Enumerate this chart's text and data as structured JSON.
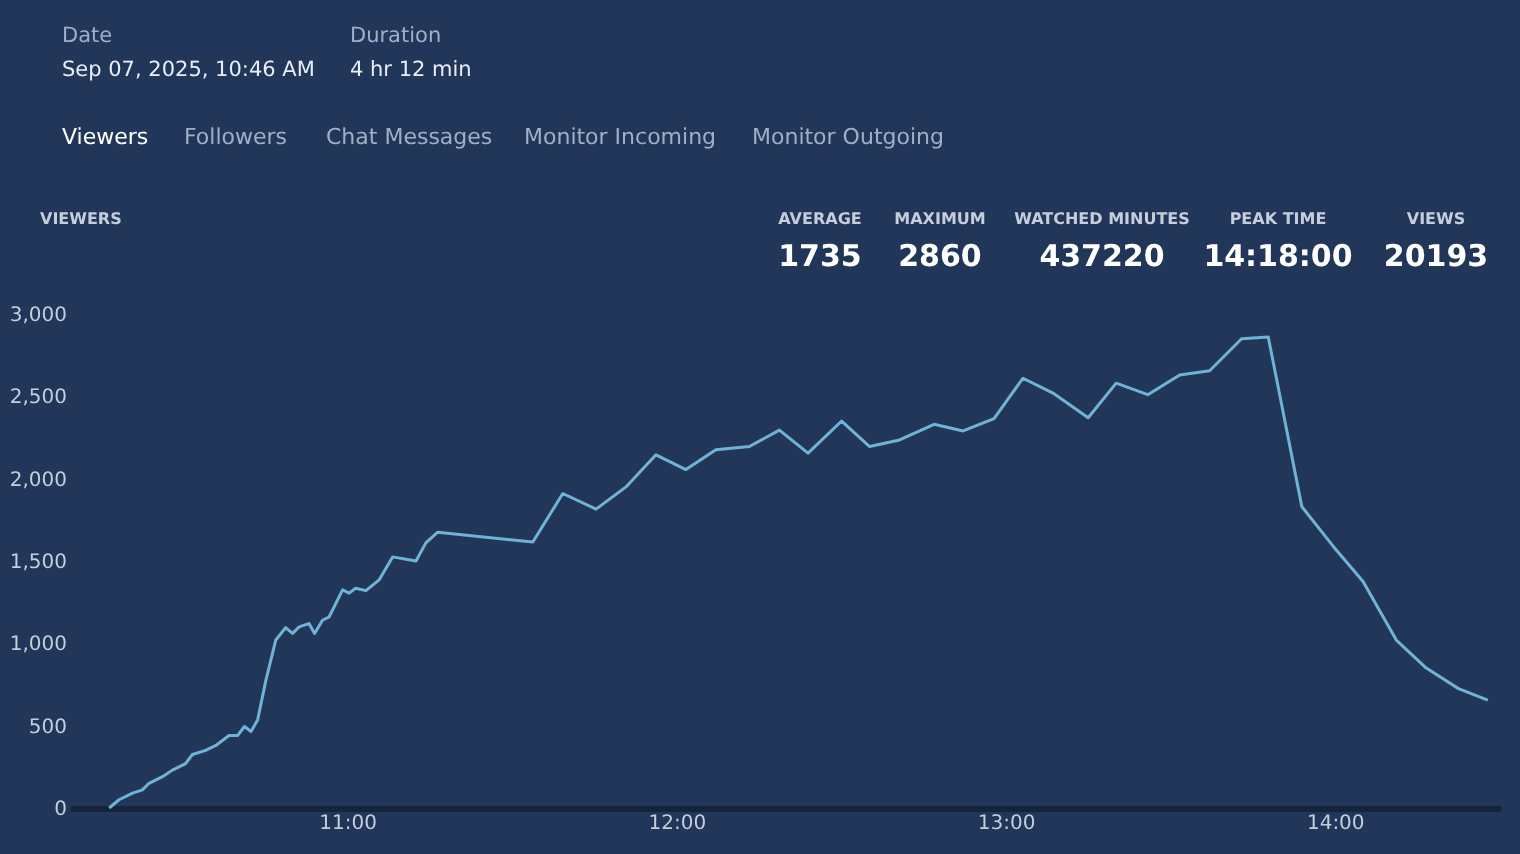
{
  "chart_data": {
    "type": "line",
    "title": "VIEWERS",
    "x": [
      10.277,
      10.307,
      10.348,
      10.378,
      10.398,
      10.439,
      10.469,
      10.509,
      10.53,
      10.57,
      10.601,
      10.641,
      10.667,
      10.688,
      10.708,
      10.728,
      10.753,
      10.783,
      10.813,
      10.834,
      10.854,
      10.884,
      10.901,
      10.925,
      10.945,
      10.986,
      11.006,
      11.026,
      11.057,
      11.097,
      11.138,
      11.209,
      11.239,
      11.275,
      11.564,
      11.655,
      11.756,
      11.847,
      11.938,
      12.029,
      12.12,
      12.222,
      12.313,
      12.4,
      12.502,
      12.587,
      12.678,
      12.783,
      12.871,
      12.965,
      13.053,
      13.144,
      13.251,
      13.336,
      13.432,
      13.529,
      13.62,
      13.717,
      13.798,
      13.9,
      13.995,
      14.086,
      14.187,
      14.278,
      14.376,
      14.465
    ],
    "series": [
      {
        "color": "#6fb3d6",
        "values": [
          0,
          50,
          90,
          110,
          150,
          190,
          230,
          270,
          325,
          350,
          380,
          440,
          440,
          495,
          465,
          535,
          775,
          1020,
          1095,
          1060,
          1100,
          1120,
          1060,
          1140,
          1160,
          1325,
          1305,
          1335,
          1320,
          1385,
          1525,
          1500,
          1610,
          1675,
          1615,
          1910,
          1815,
          1950,
          2145,
          2055,
          2175,
          2195,
          2295,
          2155,
          2350,
          2195,
          2235,
          2330,
          2290,
          2365,
          2610,
          2520,
          2370,
          2580,
          2510,
          2630,
          2655,
          2850,
          2860,
          1830,
          1590,
          1375,
          1020,
          850,
          725,
          655
        ]
      }
    ],
    "xlim": [
      10.158,
      14.502
    ],
    "xticks": [
      {
        "value": 11,
        "label": "11:00"
      },
      {
        "value": 12,
        "label": "12:00"
      },
      {
        "value": 13,
        "label": "13:00"
      },
      {
        "value": 14,
        "label": "14:00"
      }
    ],
    "ylim": [
      0,
      3000
    ],
    "yticks": [
      0,
      500,
      {
        "value": 1000,
        "label": "1,000"
      },
      {
        "value": 1500,
        "label": "1,500"
      },
      {
        "value": 2000,
        "label": "2,000"
      },
      {
        "value": 2500,
        "label": "2,500"
      },
      {
        "value": 3000,
        "label": "3,000"
      }
    ],
    "grid": false,
    "legend": false,
    "marker": "none",
    "line_style": "solid",
    "annotations": [
      "Date",
      "Sep 07, 2025, 10:46 AM",
      "Duration",
      "4 hr 12 min",
      "Viewers",
      "Followers",
      "Chat Messages",
      "Monitor Incoming",
      "Monitor Outgoing",
      "AVERAGE",
      "1735",
      "MAXIMUM",
      "2860",
      "WATCHED MINUTES",
      "437220",
      "PEAK TIME",
      "14:18:00",
      "VIEWS",
      "20193"
    ]
  }
}
